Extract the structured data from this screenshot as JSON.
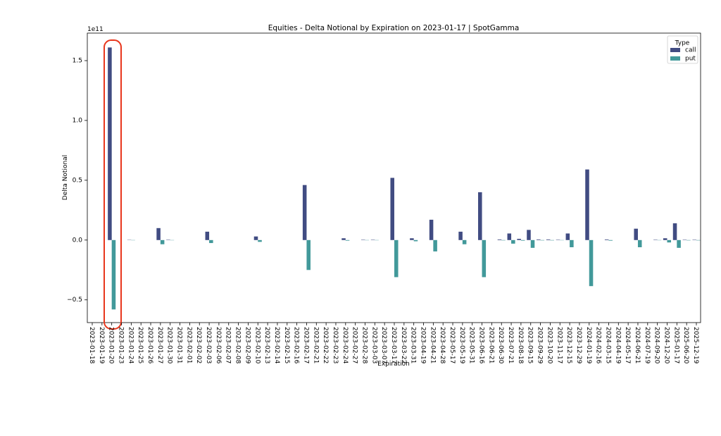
{
  "chart_data": {
    "type": "bar",
    "title": "Equities - Delta Notional by Expiration on 2023-01-17 | SpotGamma",
    "x_label": "Expiration",
    "y_label": "Delta Notional",
    "y_offset_label": "1e11",
    "legend_title": "Type",
    "legend_loc": "upper right",
    "categories": [
      "2023-01-18",
      "2023-01-19",
      "2023-01-20",
      "2023-01-23",
      "2023-01-24",
      "2023-01-25",
      "2023-01-26",
      "2023-01-27",
      "2023-01-30",
      "2023-01-31",
      "2023-02-01",
      "2023-02-02",
      "2023-02-03",
      "2023-02-06",
      "2023-02-07",
      "2023-02-08",
      "2023-02-09",
      "2023-02-10",
      "2023-02-13",
      "2023-02-14",
      "2023-02-15",
      "2023-02-16",
      "2023-02-17",
      "2023-02-21",
      "2023-02-22",
      "2023-02-23",
      "2023-02-24",
      "2023-02-27",
      "2023-02-28",
      "2023-03-03",
      "2023-03-07",
      "2023-03-17",
      "2023-03-22",
      "2023-03-31",
      "2023-04-19",
      "2023-04-21",
      "2023-04-28",
      "2023-05-17",
      "2023-05-19",
      "2023-05-31",
      "2023-06-16",
      "2023-06-21",
      "2023-06-30",
      "2023-07-21",
      "2023-08-18",
      "2023-09-15",
      "2023-09-29",
      "2023-10-20",
      "2023-11-17",
      "2023-12-15",
      "2023-12-29",
      "2024-01-19",
      "2024-02-16",
      "2024-03-15",
      "2024-04-19",
      "2024-05-17",
      "2024-06-21",
      "2024-07-19",
      "2024-09-20",
      "2024-12-20",
      "2025-01-17",
      "2025-06-20",
      "2025-12-19"
    ],
    "series": [
      {
        "name": "call",
        "color": "#414c82",
        "values": [
          0,
          0,
          1.61,
          0,
          0.002,
          0,
          0,
          0.1,
          0.003,
          0,
          0,
          0,
          0.07,
          0,
          0,
          0,
          0,
          0.03,
          0,
          0,
          0,
          0,
          0.46,
          0,
          0,
          0,
          0.015,
          0,
          0.003,
          0.003,
          0,
          0.52,
          0,
          0.015,
          0,
          0.17,
          0,
          0,
          0.07,
          0,
          0.4,
          0,
          0.005,
          0.055,
          0.01,
          0.085,
          0.005,
          0.005,
          0.003,
          0.055,
          0,
          0.59,
          0,
          0.005,
          0,
          0,
          0.095,
          0,
          0.003,
          0.015,
          0.14,
          0.003,
          0.003
        ]
      },
      {
        "name": "put",
        "color": "#42999a",
        "values": [
          0,
          0,
          -0.58,
          0,
          -0.002,
          0,
          0,
          -0.035,
          -0.002,
          0,
          0,
          0,
          -0.025,
          0,
          0,
          0,
          0,
          -0.015,
          0,
          0,
          0,
          0,
          -0.25,
          0,
          0,
          0,
          -0.005,
          0,
          -0.002,
          -0.002,
          0,
          -0.31,
          0,
          -0.01,
          0,
          -0.095,
          0,
          0,
          -0.035,
          0,
          -0.31,
          0,
          -0.003,
          -0.03,
          -0.005,
          -0.065,
          -0.003,
          -0.003,
          -0.002,
          -0.06,
          0,
          -0.385,
          0,
          -0.005,
          0,
          0,
          -0.06,
          0,
          -0.002,
          -0.02,
          -0.065,
          -0.003,
          -0.003
        ]
      }
    ],
    "ylim": [
      -0.69,
      1.73
    ],
    "yticks": [
      {
        "value": -0.5,
        "label": "−0.5"
      },
      {
        "value": 0,
        "label": "0.0"
      },
      0.5,
      {
        "value": 1,
        "label": "1.0"
      },
      1.5
    ]
  }
}
